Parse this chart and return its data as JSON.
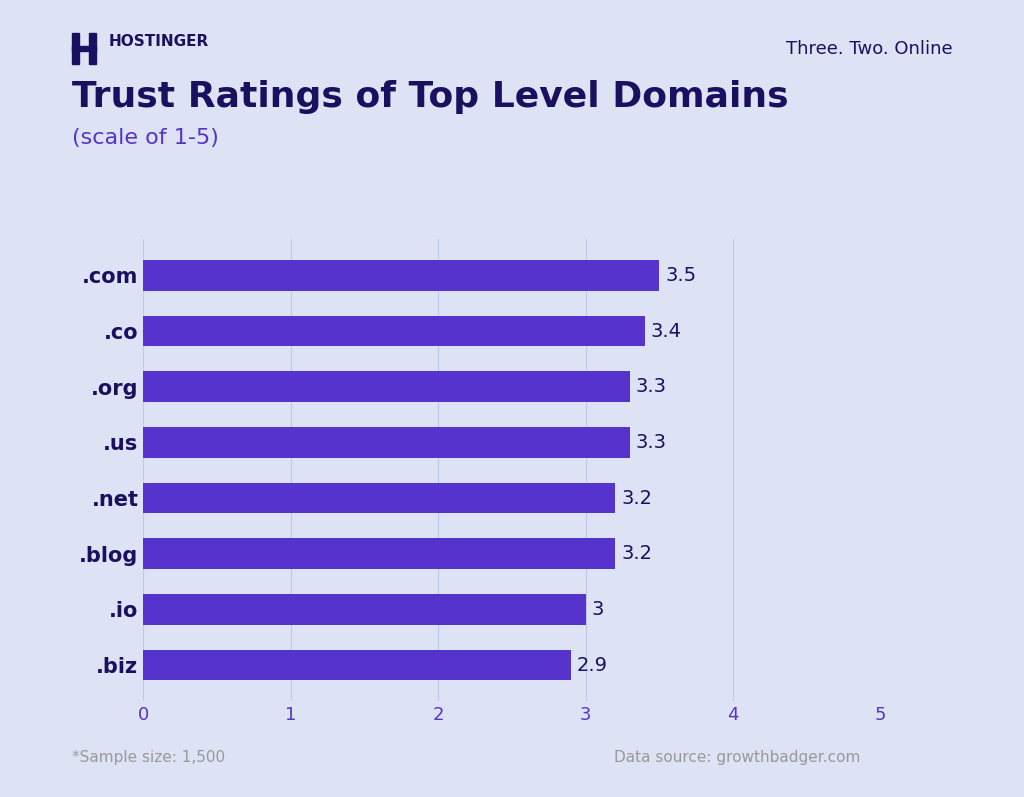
{
  "title": "Trust Ratings of Top Level Domains",
  "subtitle": "(scale of 1-5)",
  "categories": [
    ".com",
    ".co",
    ".org",
    ".us",
    ".net",
    ".blog",
    ".io",
    ".biz"
  ],
  "values": [
    3.5,
    3.4,
    3.3,
    3.3,
    3.2,
    3.2,
    3.0,
    2.9
  ],
  "bar_color": "#5533CC",
  "background_color": "#DDE3F5",
  "title_color": "#1a1060",
  "subtitle_color": "#5533CC",
  "label_color": "#1a1060",
  "tick_color": "#5533CC",
  "value_label_color": "#1a1060",
  "footnote_color": "#999999",
  "brand_color": "#1a1060",
  "xlim": [
    0,
    5
  ],
  "xticks": [
    0,
    1,
    2,
    3,
    4,
    5
  ],
  "title_fontsize": 26,
  "subtitle_fontsize": 16,
  "ytick_fontsize": 15,
  "xtick_fontsize": 13,
  "value_fontsize": 14,
  "footnote_fontsize": 11,
  "brand_text": "Three. Two. Online",
  "brand_fontsize": 13,
  "logo_text": "HOSTINGER",
  "sample_note": "*Sample size: 1,500",
  "source_note": "Data source: growthbadger.com"
}
